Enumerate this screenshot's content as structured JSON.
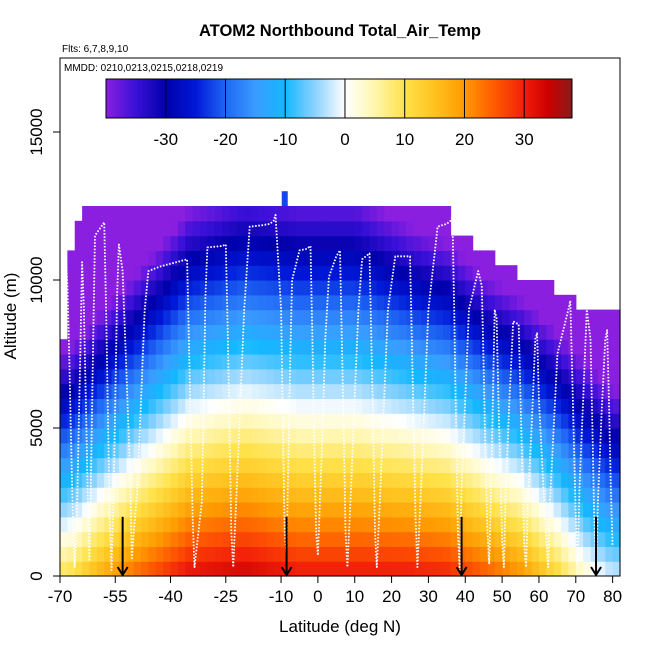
{
  "chart_data": {
    "type": "heatmap",
    "title": "ATOM2 Northbound Total_Air_Temp",
    "flights_note": "Flts: 6,7,8,9,10",
    "dates_note": "MMDD: 0210,0213,0215,0218,0219",
    "xlabel": "Latitude (deg N)",
    "ylabel": "Altitude (m)",
    "xlim": [
      -70,
      82
    ],
    "ylim": [
      0,
      17500
    ],
    "x_ticks": [
      -70,
      -55,
      -40,
      -25,
      -10,
      0,
      10,
      20,
      30,
      40,
      50,
      60,
      70,
      80
    ],
    "x_tick_labels": [
      "-70",
      "-55",
      "-40",
      "-25",
      "-10",
      "0",
      "10",
      "20",
      "30",
      "40",
      "50",
      "60",
      "70",
      "80"
    ],
    "y_ticks": [
      0,
      5000,
      10000,
      15000
    ],
    "y_tick_labels": [
      "0",
      "5000",
      "10000",
      "15000"
    ],
    "colorbar": {
      "range": [
        -40,
        38
      ],
      "ticks": [
        -30,
        -20,
        -10,
        0,
        10,
        20,
        30
      ],
      "tick_labels": [
        "-30",
        "-20",
        "-10",
        "0",
        "10",
        "20",
        "30"
      ],
      "stops": [
        {
          "v": -40,
          "c": "#8a1fe0"
        },
        {
          "v": -35,
          "c": "#3a10d8"
        },
        {
          "v": -30,
          "c": "#0000aa"
        },
        {
          "v": -25,
          "c": "#0018d8"
        },
        {
          "v": -20,
          "c": "#1f66f5"
        },
        {
          "v": -15,
          "c": "#3a9cff"
        },
        {
          "v": -10,
          "c": "#14b8ff"
        },
        {
          "v": -5,
          "c": "#8cd2ff"
        },
        {
          "v": 0,
          "c": "#ffffff"
        },
        {
          "v": 4,
          "c": "#fff9c0"
        },
        {
          "v": 10,
          "c": "#ffe24a"
        },
        {
          "v": 15,
          "c": "#ffc21f"
        },
        {
          "v": 20,
          "c": "#ff9a00"
        },
        {
          "v": 25,
          "c": "#ff5a00"
        },
        {
          "v": 30,
          "c": "#f21e0a"
        },
        {
          "v": 34,
          "c": "#cc0000"
        },
        {
          "v": 38,
          "c": "#8b1a1a"
        }
      ]
    },
    "grid_spec": {
      "lat_start": -69,
      "lat_step": 2,
      "lat_count": 76,
      "alt_step": 500,
      "alt_count": 26
    },
    "coverage": [
      {
        "lat": -69,
        "top": 8000
      },
      {
        "lat": -67,
        "top": 10700
      },
      {
        "lat": -65,
        "top": 11700
      },
      {
        "lat": -63,
        "top": 12400
      },
      {
        "lat": 35,
        "top": 12400
      },
      {
        "lat": 37,
        "top": 11500
      },
      {
        "lat": 45,
        "top": 10800
      },
      {
        "lat": 51,
        "top": 10200
      },
      {
        "lat": 61,
        "top": 9700
      },
      {
        "lat": 67,
        "top": 9200
      },
      {
        "lat": 73,
        "top": 8900
      },
      {
        "lat": 77,
        "top": 8900
      },
      {
        "lat": 79,
        "top": 8600
      }
    ],
    "temperature_profile": [
      {
        "lat": -68,
        "t0": 10,
        "lapse": 6.5,
        "trop": 9000
      },
      {
        "lat": -60,
        "t0": 17,
        "lapse": 6.5,
        "trop": 10000
      },
      {
        "lat": -50,
        "t0": 24,
        "lapse": 6.3,
        "trop": 11500
      },
      {
        "lat": -35,
        "t0": 32,
        "lapse": 5.8,
        "trop": 15000
      },
      {
        "lat": -20,
        "t0": 34,
        "lapse": 5.6,
        "trop": 16000
      },
      {
        "lat": -5,
        "t0": 31,
        "lapse": 5.5,
        "trop": 16500
      },
      {
        "lat": 10,
        "t0": 31,
        "lapse": 5.5,
        "trop": 16500
      },
      {
        "lat": 25,
        "t0": 31,
        "lapse": 6.0,
        "trop": 15000
      },
      {
        "lat": 35,
        "t0": 30,
        "lapse": 6.2,
        "trop": 13000
      },
      {
        "lat": 45,
        "t0": 26,
        "lapse": 6.5,
        "trop": 12000
      },
      {
        "lat": 55,
        "t0": 21,
        "lapse": 6.5,
        "trop": 11000
      },
      {
        "lat": 65,
        "t0": 12,
        "lapse": 6.3,
        "trop": 9500
      },
      {
        "lat": 72,
        "t0": 4,
        "lapse": 6.0,
        "trop": 9000
      },
      {
        "lat": 80,
        "t0": -2,
        "lapse": 6.0,
        "trop": 8500
      }
    ],
    "isolated_cell": {
      "lat": -9,
      "alt": 12750,
      "temp": -22
    },
    "flight_track": [
      [
        -68.5,
        11000
      ],
      [
        -68,
        9800
      ],
      [
        -67.5,
        7500
      ],
      [
        -67,
        4500
      ],
      [
        -66.5,
        2000
      ],
      [
        -66,
        300
      ],
      [
        -65.5,
        1500
      ],
      [
        -65,
        4500
      ],
      [
        -64.5,
        7500
      ],
      [
        -64,
        10600
      ],
      [
        -63.5,
        9000
      ],
      [
        -63,
        6000
      ],
      [
        -62.5,
        3000
      ],
      [
        -62,
        500
      ],
      [
        -61.5,
        4000
      ],
      [
        -61,
        8000
      ],
      [
        -60.5,
        11500
      ],
      [
        -58,
        11950
      ],
      [
        -57.5,
        9000
      ],
      [
        -57,
        5500
      ],
      [
        -56.5,
        2000
      ],
      [
        -56,
        200
      ],
      [
        -55.5,
        2500
      ],
      [
        -55,
        6000
      ],
      [
        -54.5,
        9500
      ],
      [
        -54,
        11200
      ],
      [
        -53,
        10300
      ],
      [
        -52,
        7000
      ],
      [
        -51,
        3500
      ],
      [
        -50.5,
        600
      ],
      [
        -49,
        3000
      ],
      [
        -48,
        6000
      ],
      [
        -47,
        9000
      ],
      [
        -46,
        10300
      ],
      [
        -43,
        10450
      ],
      [
        -40,
        10550
      ],
      [
        -37,
        10650
      ],
      [
        -35.5,
        10700
      ],
      [
        -35,
        8000
      ],
      [
        -34.5,
        5000
      ],
      [
        -34,
        2000
      ],
      [
        -33.5,
        300
      ],
      [
        -31.5,
        2500
      ],
      [
        -31,
        6000
      ],
      [
        -30.5,
        9500
      ],
      [
        -30,
        11100
      ],
      [
        -26,
        11150
      ],
      [
        -25,
        11200
      ],
      [
        -24.5,
        8500
      ],
      [
        -24,
        5000
      ],
      [
        -23.5,
        1500
      ],
      [
        -23,
        300
      ],
      [
        -22,
        3000
      ],
      [
        -21,
        6000
      ],
      [
        -20,
        9000
      ],
      [
        -18.5,
        11800
      ],
      [
        -15,
        11850
      ],
      [
        -13,
        11900
      ],
      [
        -12,
        12000
      ],
      [
        -11.5,
        12200
      ],
      [
        -10,
        9000
      ],
      [
        -9.5,
        5000
      ],
      [
        -9,
        1500
      ],
      [
        -8.5,
        700
      ],
      [
        -8,
        4000
      ],
      [
        -7.5,
        7500
      ],
      [
        -7,
        10000
      ],
      [
        -5,
        11000
      ],
      [
        -3,
        11050
      ],
      [
        -2,
        11150
      ],
      [
        -1.5,
        8000
      ],
      [
        -1,
        4500
      ],
      [
        -0.5,
        1500
      ],
      [
        0,
        700
      ],
      [
        1,
        4000
      ],
      [
        2,
        8000
      ],
      [
        3,
        10100
      ],
      [
        5,
        10800
      ],
      [
        6,
        11000
      ],
      [
        6.5,
        8000
      ],
      [
        7,
        5000
      ],
      [
        7.5,
        1500
      ],
      [
        8,
        300
      ],
      [
        9,
        3000
      ],
      [
        10,
        6000
      ],
      [
        11,
        9000
      ],
      [
        12,
        10700
      ],
      [
        13,
        10800
      ],
      [
        14,
        10900
      ],
      [
        14.5,
        8000
      ],
      [
        15,
        5000
      ],
      [
        15.5,
        1500
      ],
      [
        16,
        300
      ],
      [
        17,
        3000
      ],
      [
        18,
        6000
      ],
      [
        19,
        9000
      ],
      [
        21,
        10800
      ],
      [
        25,
        10800
      ],
      [
        25.5,
        8000
      ],
      [
        26,
        5000
      ],
      [
        26.5,
        2000
      ],
      [
        27,
        300
      ],
      [
        28,
        3000
      ],
      [
        29,
        6000
      ],
      [
        30,
        9000
      ],
      [
        32.5,
        11800
      ],
      [
        35,
        11900
      ],
      [
        36,
        12000
      ],
      [
        36.5,
        12150
      ],
      [
        37,
        9000
      ],
      [
        37.5,
        5000
      ],
      [
        38,
        1500
      ],
      [
        38.5,
        200
      ],
      [
        39,
        3000
      ],
      [
        40,
        6000
      ],
      [
        41,
        9000
      ],
      [
        43.5,
        10300
      ],
      [
        44.5,
        9800
      ],
      [
        45,
        7000
      ],
      [
        45.5,
        4000
      ],
      [
        46,
        1500
      ],
      [
        46.5,
        400
      ],
      [
        47,
        3000
      ],
      [
        47.5,
        6000
      ],
      [
        48,
        9000
      ],
      [
        48.5,
        8700
      ],
      [
        49,
        6000
      ],
      [
        49.5,
        3500
      ],
      [
        50,
        1200
      ],
      [
        50.5,
        300
      ],
      [
        51,
        3000
      ],
      [
        52,
        6000
      ],
      [
        53,
        8600
      ],
      [
        54.5,
        8500
      ],
      [
        55,
        6000
      ],
      [
        55.5,
        3500
      ],
      [
        56,
        1000
      ],
      [
        56.5,
        300
      ],
      [
        57,
        2500
      ],
      [
        58,
        5000
      ],
      [
        59,
        8000
      ],
      [
        59.5,
        8200
      ],
      [
        60,
        6000
      ],
      [
        61,
        3500
      ],
      [
        62,
        1200
      ],
      [
        62.5,
        300
      ],
      [
        63,
        2500
      ],
      [
        64,
        5000
      ],
      [
        65,
        7500
      ],
      [
        67,
        8500
      ],
      [
        68,
        9000
      ],
      [
        68.5,
        9300
      ],
      [
        69,
        7000
      ],
      [
        69.5,
        4500
      ],
      [
        70,
        2000
      ],
      [
        70.5,
        300
      ],
      [
        71,
        3000
      ],
      [
        72,
        6000
      ],
      [
        73,
        9000
      ],
      [
        74,
        8000
      ],
      [
        74.5,
        5000
      ],
      [
        75,
        2000
      ],
      [
        75.5,
        300
      ],
      [
        76,
        2500
      ],
      [
        77,
        5500
      ],
      [
        78,
        8000
      ],
      [
        78.5,
        8300
      ],
      [
        79,
        6000
      ],
      [
        79.5,
        3000
      ],
      [
        80,
        1000
      ]
    ],
    "arrows": [
      {
        "lat": -53,
        "alt": 700
      },
      {
        "lat": -8.5,
        "alt": 700
      },
      {
        "lat": 39,
        "alt": 700
      },
      {
        "lat": 75.5,
        "alt": 700
      }
    ]
  }
}
